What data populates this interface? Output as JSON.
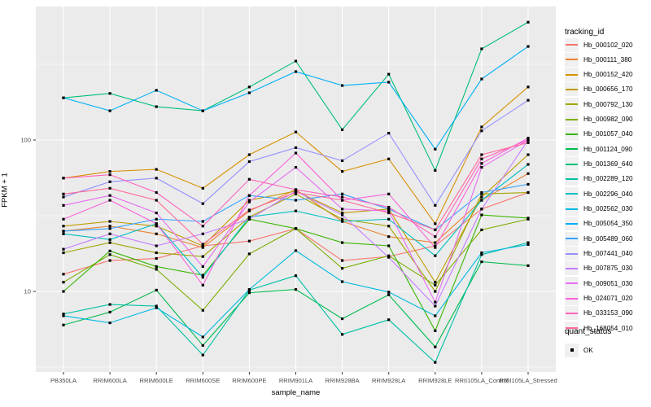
{
  "chart_data": {
    "type": "line",
    "title": "",
    "xlabel": "sample_name",
    "ylabel": "FPKM + 1",
    "y_scale": "log10",
    "y_tick_labels": [
      "100",
      "10"
    ],
    "y_tick_values": [
      100,
      10
    ],
    "y_minor_gridline_values": [
      316.2,
      31.62,
      3.162
    ],
    "ylim": [
      2.9,
      760
    ],
    "grid": "on",
    "legend_position": "right",
    "point_shape": "black-square",
    "categories": [
      "PB350LA",
      "RRIM600LA",
      "RRIM600LE",
      "RRIM600SE",
      "RRIM600PE",
      "RRIM901LA",
      "RRIM928BA",
      "RRIM928LA",
      "RRIM928LE",
      "RRII105LA_Control",
      "RRII105LA_Stressed"
    ],
    "series": [
      {
        "name": "Hb_000102_020",
        "color": "#F8766D",
        "values": [
          13,
          16,
          16.5,
          20,
          21.5,
          26,
          16,
          17,
          20,
          35,
          45
        ]
      },
      {
        "name": "Hb_000111_380",
        "color": "#EA8331",
        "values": [
          25,
          27,
          24,
          19.5,
          34,
          47,
          29,
          23,
          21,
          40,
          60
        ]
      },
      {
        "name": "Hb_000152_420",
        "color": "#D89000",
        "values": [
          56,
          62,
          64,
          48,
          80,
          113,
          62,
          75,
          28,
          122,
          224
        ]
      },
      {
        "name": "Hb_000656_170",
        "color": "#C09B00",
        "values": [
          27,
          29,
          27,
          20,
          40,
          46,
          33,
          35,
          11.5,
          42,
          80
        ]
      },
      {
        "name": "Hb_000792_130",
        "color": "#A3A500",
        "values": [
          18,
          21,
          18,
          17,
          31,
          44,
          30,
          27,
          10,
          44,
          45
        ]
      },
      {
        "name": "Hb_000982_090",
        "color": "#7CAE00",
        "values": [
          11.5,
          17.5,
          14,
          7.5,
          17.7,
          26,
          14.2,
          17.2,
          11,
          25.5,
          30
        ]
      },
      {
        "name": "Hb_001057_040",
        "color": "#39B600",
        "values": [
          10,
          18.5,
          14.6,
          12.8,
          30,
          26,
          21,
          20,
          5.5,
          32,
          30.5
        ]
      },
      {
        "name": "Hb_001124_090",
        "color": "#00BB4E",
        "values": [
          6,
          7.3,
          10.2,
          4.4,
          9.8,
          10.3,
          6.6,
          9.5,
          4.3,
          15.7,
          14.8
        ]
      },
      {
        "name": "Hb_001369_640",
        "color": "#00BF7D",
        "values": [
          190,
          203,
          166,
          156,
          224,
          332,
          117,
          272,
          63,
          400,
          600
        ]
      },
      {
        "name": "Hb_002289_120",
        "color": "#00C1A3",
        "values": [
          7.1,
          8.2,
          8.0,
          3.8,
          10.2,
          12.7,
          5.2,
          6.5,
          3.4,
          17.5,
          21
        ]
      },
      {
        "name": "Hb_002296_040",
        "color": "#00BFC4",
        "values": [
          24,
          22,
          28,
          12.4,
          31,
          34,
          29,
          30,
          17.2,
          40,
          69
        ]
      },
      {
        "name": "Hb_002562_030",
        "color": "#00BAE0",
        "values": [
          6.9,
          6.2,
          7.8,
          5.0,
          10.3,
          18.6,
          11.6,
          9.9,
          6.9,
          18,
          20.4
        ]
      },
      {
        "name": "Hb_005054_350",
        "color": "#00B0F6",
        "values": [
          190,
          156,
          213,
          156,
          205,
          283,
          229,
          241,
          87,
          253,
          415
        ]
      },
      {
        "name": "Hb_005489_060",
        "color": "#35A2FF",
        "values": [
          25,
          26,
          30,
          29,
          43,
          40,
          44,
          35,
          25.5,
          45,
          51
        ]
      },
      {
        "name": "Hb_007441_040",
        "color": "#9590FF",
        "values": [
          42,
          53,
          56,
          38,
          72,
          89,
          73,
          111,
          37,
          115,
          183
        ]
      },
      {
        "name": "Hb_007875_030",
        "color": "#C77CFF",
        "values": [
          19,
          24,
          20,
          24,
          30,
          46,
          32,
          16.8,
          8.0,
          35,
          100
        ]
      },
      {
        "name": "Hb_009051_030",
        "color": "#E76BF3",
        "values": [
          37,
          43,
          33,
          14.6,
          39,
          66,
          35,
          34,
          8.5,
          66,
          100
        ]
      },
      {
        "name": "Hb_024071_020",
        "color": "#FA62DB",
        "values": [
          30,
          40,
          28,
          11,
          43,
          82,
          40,
          44,
          19.5,
          70,
          103
        ]
      },
      {
        "name": "Hb_033153_090",
        "color": "#FF62BC",
        "values": [
          56,
          59,
          45,
          27,
          55,
          47,
          42,
          36,
          23,
          75,
          100
        ]
      },
      {
        "name": "Hb_168054_010",
        "color": "#FF6A98",
        "values": [
          44,
          48,
          40,
          20.5,
          34.5,
          45,
          40,
          33,
          25.5,
          80,
          96
        ]
      }
    ]
  },
  "legend": {
    "tracking_title": "tracking_id",
    "quant_title": "quant_status",
    "quant_items": [
      {
        "label": "OK"
      }
    ]
  },
  "colors": {
    "panel_background": "#EBEBEB",
    "gridline": "#FFFFFF",
    "tick_text": "#4D4D4D",
    "point": "#000000"
  }
}
